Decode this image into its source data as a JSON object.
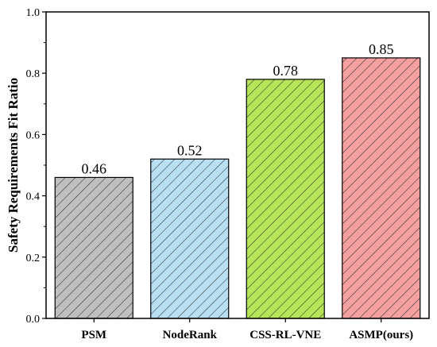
{
  "chart_data": {
    "type": "bar",
    "categories": [
      "PSM",
      "NodeRank",
      "CSS-RL-VNE",
      "ASMP(ours)"
    ],
    "values": [
      0.46,
      0.52,
      0.78,
      0.85
    ],
    "data_labels": [
      "0.46",
      "0.52",
      "0.78",
      "0.85"
    ],
    "title": "",
    "xlabel": "",
    "ylabel": "Safety Requirements Fit Ratio",
    "ylim": [
      0,
      1.0
    ],
    "yticks": [
      "0.0",
      "0.2",
      "0.4",
      "0.6",
      "0.8",
      "1.0"
    ],
    "grid": false,
    "bar_colors": [
      "#bfbfbf",
      "#b9dff3",
      "#b6e55a",
      "#f4a0a0"
    ],
    "bar_pattern": "diagonal-hatch"
  }
}
